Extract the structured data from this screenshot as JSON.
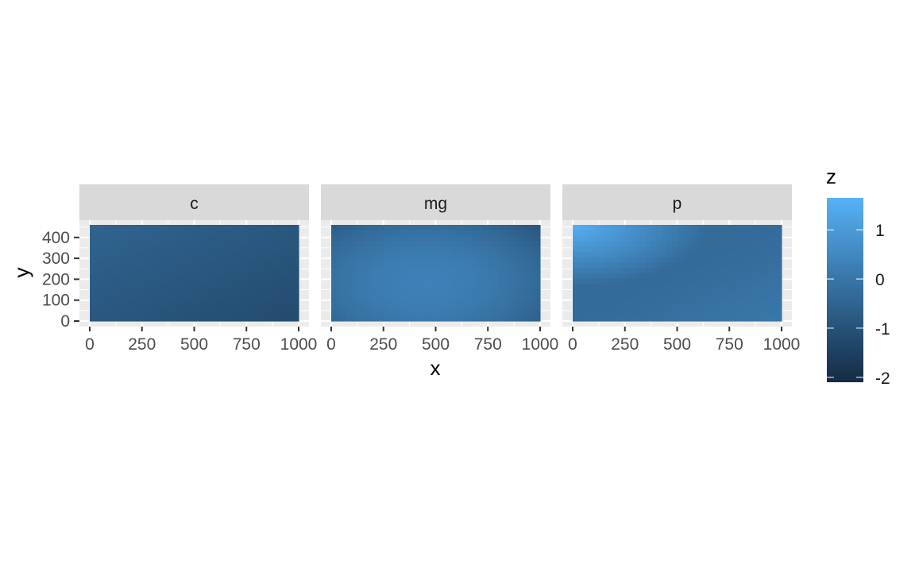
{
  "chart_data": {
    "type": "heatmap",
    "facets": [
      {
        "label": "c",
        "field": {
          "base": -0.5,
          "gx": 0.0,
          "gy": 0.0,
          "slope_x": -0.35,
          "slope_y": -0.35
        }
      },
      {
        "label": "mg",
        "field": {
          "base": 0.3,
          "gx": 0.45,
          "gy": 0.05,
          "slope_x": 0.0,
          "slope_y": 0.0,
          "quad_x": -2.2,
          "quad_y": -1.6
        }
      },
      {
        "label": "p",
        "field": {
          "base": -0.3,
          "gx": 0.5,
          "gy": 0.5,
          "slope_x": 0.0,
          "slope_y": 0.0,
          "corner_tl": 1.6,
          "corner_br": -0.1
        }
      }
    ],
    "xlabel": "x",
    "ylabel": "y",
    "xlim": [
      0,
      1000
    ],
    "ylim": [
      0,
      460
    ],
    "x_ticks": [
      "0",
      "250",
      "500",
      "750",
      "1000"
    ],
    "y_ticks": [
      "0",
      "100",
      "200",
      "300",
      "400"
    ],
    "legend": {
      "title": "z",
      "range": [
        -2.1,
        1.65
      ],
      "ticks": [
        "1",
        "0",
        "-1",
        "-2"
      ],
      "tick_values": [
        1,
        0,
        -1,
        -2
      ],
      "low_color": "#132B43",
      "high_color": "#56B1F7",
      "placement": "right"
    },
    "grid": true,
    "panel_background": "#EBEBEB",
    "strip_background": "#D9D9D9"
  }
}
